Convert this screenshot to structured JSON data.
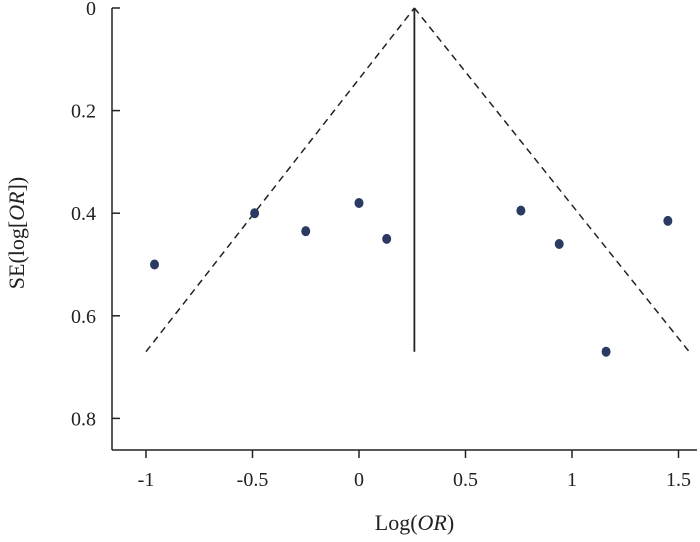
{
  "chart_data": {
    "type": "scatter",
    "title": "",
    "xlabel_parts": [
      {
        "text": "Log(",
        "italic": false
      },
      {
        "text": "OR",
        "italic": true
      },
      {
        "text": ")",
        "italic": false
      }
    ],
    "ylabel_parts": [
      {
        "text": "SE(log[",
        "italic": false
      },
      {
        "text": "OR",
        "italic": true
      },
      {
        "text": "])",
        "italic": false
      }
    ],
    "xlim": [
      -1.15,
      1.6
    ],
    "ylim": [
      0,
      0.86
    ],
    "y_inverted": true,
    "x_ticks": [
      -1,
      -0.5,
      0,
      0.5,
      1,
      1.5
    ],
    "x_tick_labels": [
      "-1",
      "-0.5",
      "0",
      "0.5",
      "1",
      "1.5"
    ],
    "y_ticks": [
      0,
      0.2,
      0.4,
      0.6,
      0.8
    ],
    "y_tick_labels": [
      "0",
      "0.2",
      "0.4",
      "0.6",
      "0.8"
    ],
    "grid": false,
    "point_color": "#2b3a63",
    "points": [
      {
        "x": -0.96,
        "y": 0.5
      },
      {
        "x": -0.49,
        "y": 0.4
      },
      {
        "x": -0.25,
        "y": 0.435
      },
      {
        "x": 0.0,
        "y": 0.38
      },
      {
        "x": 0.13,
        "y": 0.45
      },
      {
        "x": 0.76,
        "y": 0.395
      },
      {
        "x": 0.94,
        "y": 0.46
      },
      {
        "x": 1.16,
        "y": 0.67
      },
      {
        "x": 1.45,
        "y": 0.415
      }
    ],
    "pooled_estimate": {
      "x": 0.26,
      "se_max": 0.67
    },
    "funnel_lines": [
      {
        "style": "dashed",
        "points": [
          [
            -1.0,
            0.67
          ],
          [
            0.26,
            0.0
          ]
        ]
      },
      {
        "style": "dashed",
        "points": [
          [
            0.26,
            0.0
          ],
          [
            1.55,
            0.67
          ]
        ]
      }
    ]
  }
}
